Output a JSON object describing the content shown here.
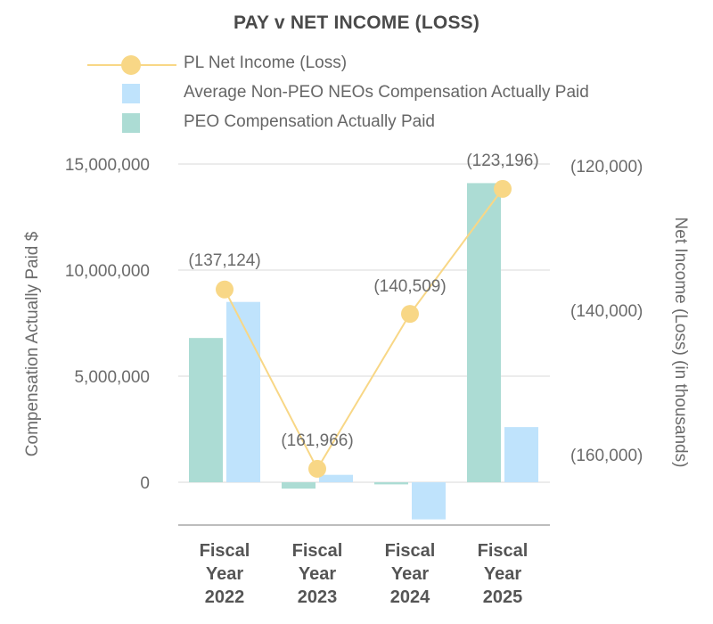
{
  "chart_data": {
    "type": "bar",
    "title": "PAY v NET INCOME (LOSS)",
    "categories": [
      [
        "Fiscal",
        "Year",
        "2022"
      ],
      [
        "Fiscal",
        "Year",
        "2023"
      ],
      [
        "Fiscal",
        "Year",
        "2024"
      ],
      [
        "Fiscal",
        "Year",
        "2025"
      ]
    ],
    "ylabel": "Compensation Actually Paid $",
    "y2label": "Net Income (Loss) (in thousands)",
    "ylim": [
      -1800000,
      15000000
    ],
    "yticks": [
      0,
      5000000,
      10000000,
      15000000
    ],
    "ytick_labels": [
      "0",
      "5,000,000",
      "10,000,000",
      "15,000,000"
    ],
    "y2lim": [
      -171000,
      -120000
    ],
    "y2ticks": [
      -120000,
      -140000,
      -160000
    ],
    "y2tick_labels": [
      "(120,000)",
      "(140,000)",
      "(160,000)"
    ],
    "grid": true,
    "legend_position": "top",
    "series": [
      {
        "name": "PEO Compensation Actually Paid",
        "type": "bar",
        "axis": "left",
        "color": "#acdcd4",
        "values": [
          6800000,
          -300000,
          -100000,
          14100000
        ]
      },
      {
        "name": "Average Non-PEO NEOs Compensation Actually Paid",
        "type": "bar",
        "axis": "left",
        "color": "#bfe3fc",
        "values": [
          8500000,
          350000,
          -1750000,
          2600000
        ]
      },
      {
        "name": "PL Net Income (Loss)",
        "type": "line",
        "axis": "right",
        "color": "#f8d786",
        "values": [
          -137124,
          -161966,
          -140509,
          -123196
        ],
        "labels": [
          "(137,124)",
          "(161,966)",
          "(140,509)",
          "(123,196)"
        ]
      }
    ]
  },
  "legend": [
    {
      "label": "PL Net Income (Loss)",
      "kind": "line",
      "color": "#f8d786"
    },
    {
      "label": "Average Non-PEO NEOs Compensation Actually Paid",
      "kind": "bar",
      "color": "#bfe3fc"
    },
    {
      "label": "PEO Compensation Actually Paid",
      "kind": "bar",
      "color": "#acdcd4"
    }
  ]
}
